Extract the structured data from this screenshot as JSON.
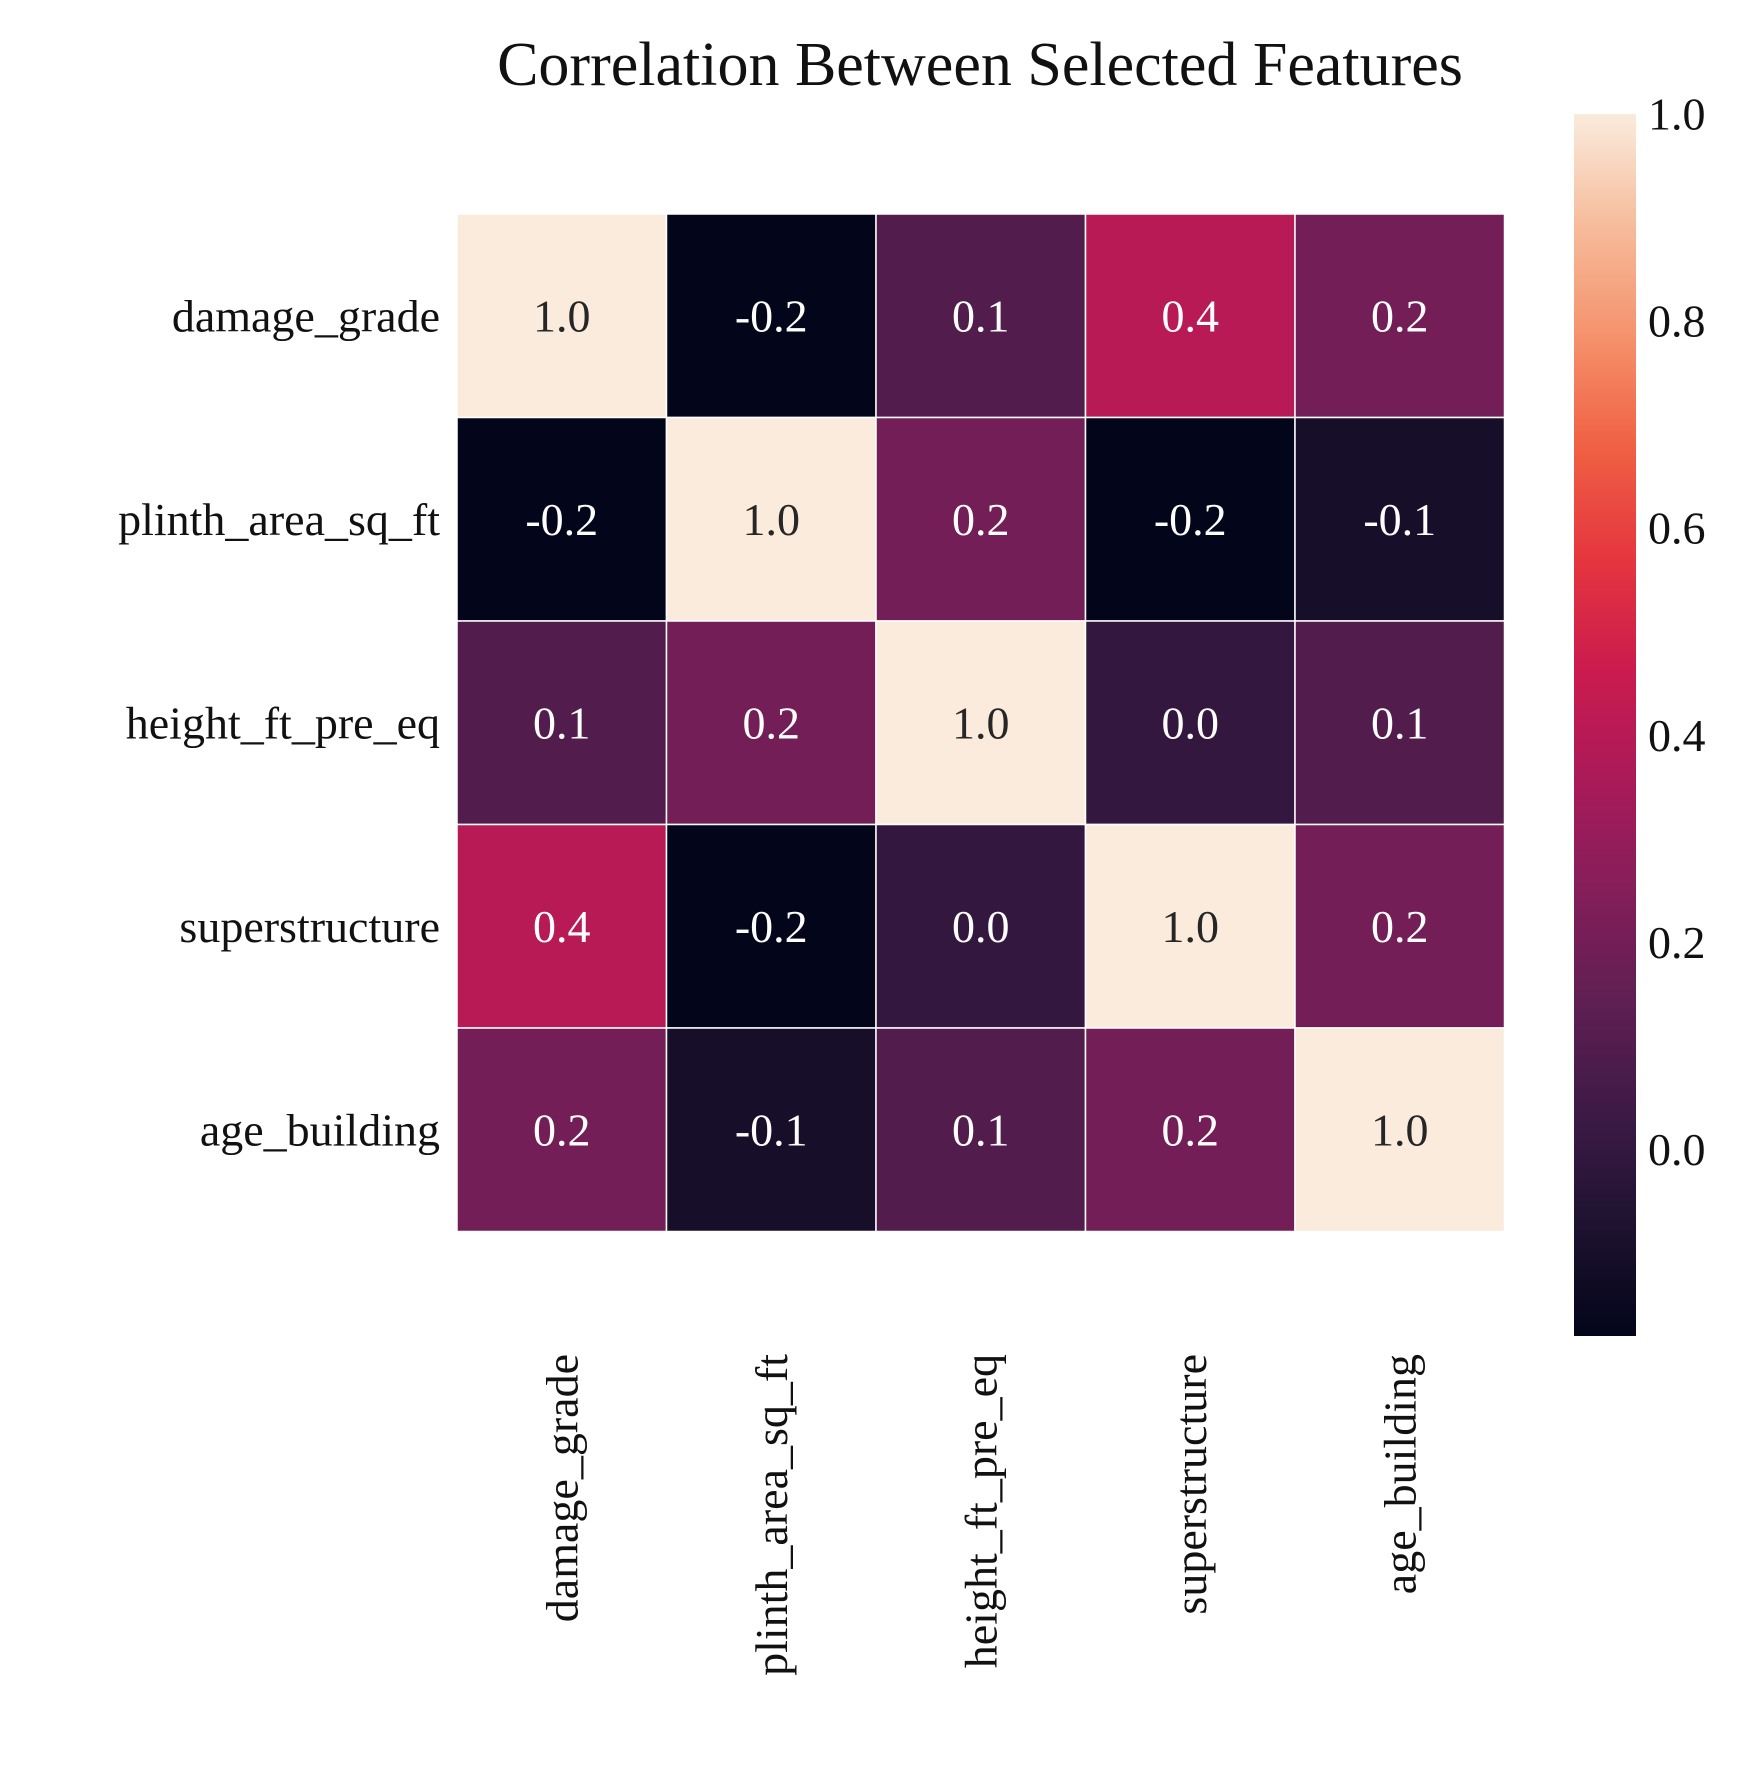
{
  "chart_data": {
    "type": "heatmap",
    "title": "Correlation Between Selected Features",
    "row_labels": [
      "damage_grade",
      "plinth_area_sq_ft",
      "height_ft_pre_eq",
      "superstructure",
      "age_building"
    ],
    "col_labels": [
      "damage_grade",
      "plinth_area_sq_ft",
      "height_ft_pre_eq",
      "superstructure",
      "age_building"
    ],
    "values": [
      [
        1.0,
        -0.2,
        0.1,
        0.4,
        0.2
      ],
      [
        -0.2,
        1.0,
        0.2,
        -0.2,
        -0.1
      ],
      [
        0.1,
        0.2,
        1.0,
        0.0,
        0.1
      ],
      [
        0.4,
        -0.2,
        0.0,
        1.0,
        0.2
      ],
      [
        0.2,
        -0.1,
        0.1,
        0.2,
        1.0
      ]
    ],
    "annotations": [
      [
        "1.0",
        "-0.2",
        "0.1",
        "0.4",
        "0.2"
      ],
      [
        "-0.2",
        "1.0",
        "0.2",
        "-0.2",
        "-0.1"
      ],
      [
        "0.1",
        "0.2",
        "1.0",
        "0.0",
        "0.1"
      ],
      [
        "0.4",
        "-0.2",
        "0.0",
        "1.0",
        "0.2"
      ],
      [
        "0.2",
        "-0.1",
        "0.1",
        "0.2",
        "1.0"
      ]
    ],
    "colorbar": {
      "range": [
        -0.18,
        1.0
      ],
      "ticks": [
        0.0,
        0.2,
        0.4,
        0.6,
        0.8,
        1.0
      ],
      "tick_labels": [
        "0.0",
        "0.2",
        "0.4",
        "0.6",
        "0.8",
        "1.0"
      ],
      "placement": "right",
      "colormap": "rocket",
      "stops": [
        "#03051a",
        "#1e1230",
        "#3d1a46",
        "#5f1f52",
        "#841e5a",
        "#aa1a59",
        "#cb1b4f",
        "#e5363e",
        "#f06043",
        "#f5926c",
        "#f6bc9b",
        "#faebdd"
      ]
    },
    "annotation_colors": {
      "dark_text": "#262626",
      "light_text": "#ffffff"
    },
    "cell_border_color": "#ffffff",
    "grid": false
  }
}
